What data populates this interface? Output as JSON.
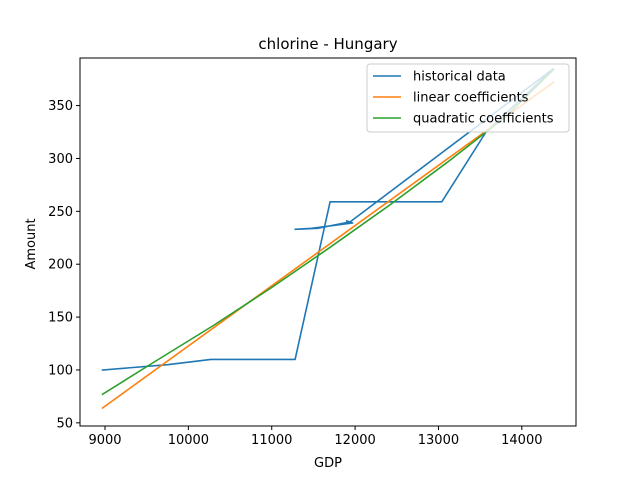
{
  "chart_data": {
    "type": "line",
    "title": "chlorine - Hungary",
    "xlabel": "GDP",
    "ylabel": "Amount",
    "xlim": [
      8700,
      14650
    ],
    "ylim": [
      47,
      395
    ],
    "xticks": [
      9000,
      10000,
      11000,
      12000,
      13000,
      14000
    ],
    "yticks": [
      50,
      100,
      150,
      200,
      250,
      300,
      350
    ],
    "grid": false,
    "legend_position": "top-right",
    "series": [
      {
        "name": "historical data",
        "color": "#1f77b4",
        "x": [
          8970,
          9750,
          10270,
          11280,
          11700,
          13040,
          13570,
          14380,
          11940,
          11550,
          11280,
          11480,
          11970,
          11900
        ],
        "y": [
          100,
          105,
          110,
          110,
          259,
          259,
          325,
          385,
          240,
          234,
          233,
          234,
          239,
          241
        ]
      },
      {
        "name": "linear coefficients",
        "color": "#ff7f0e",
        "x": [
          8970,
          14380
        ],
        "y": [
          64,
          372
        ]
      },
      {
        "name": "quadratic coefficients",
        "color": "#2ca02c",
        "x": [
          8970,
          9600,
          10300,
          11000,
          11700,
          12400,
          13100,
          13800,
          14380
        ],
        "y": [
          77,
          108,
          142,
          178,
          216,
          255,
          296,
          339,
          384
        ]
      }
    ]
  }
}
